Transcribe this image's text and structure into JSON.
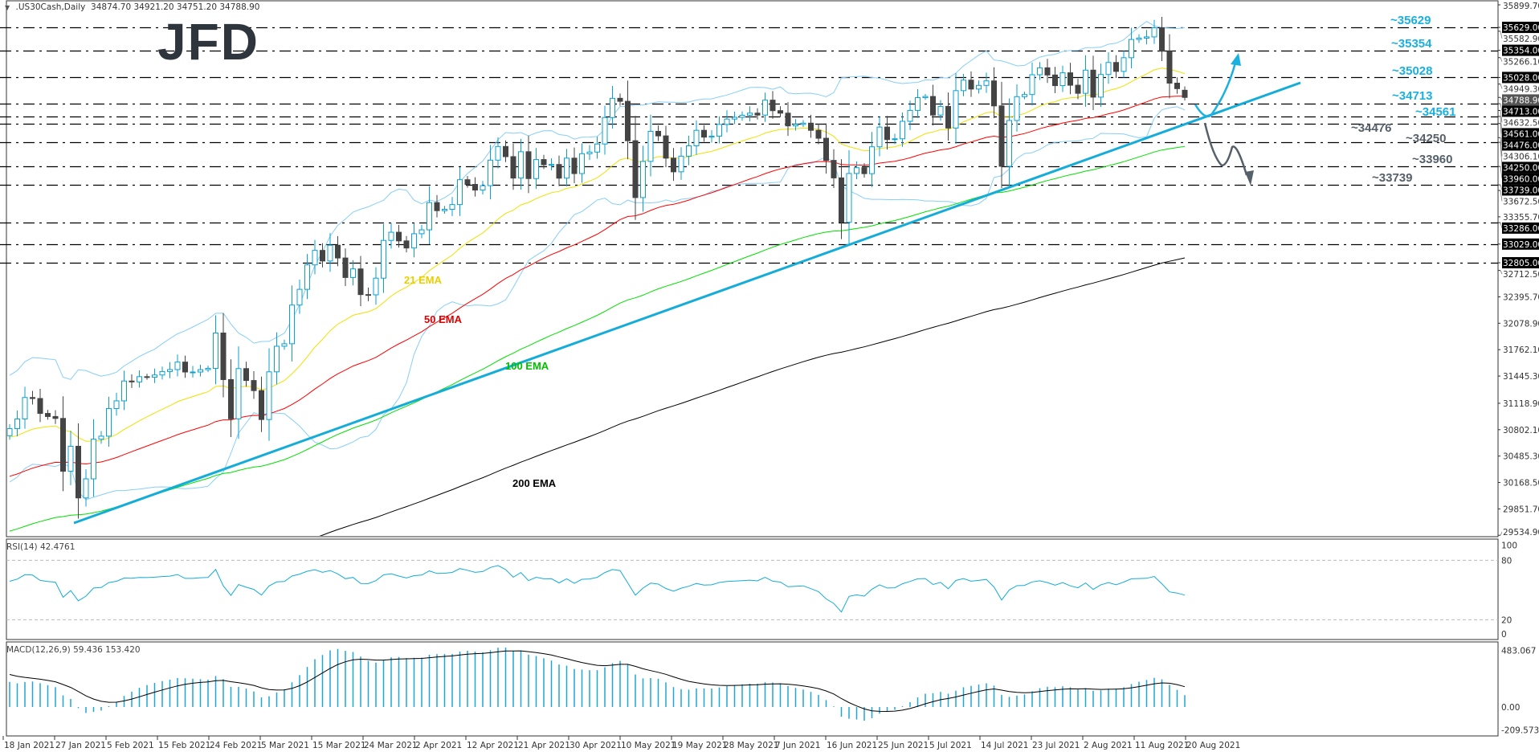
{
  "header": {
    "symbol": ".US30Cash,Daily",
    "ohlc": "34874.70 34921.20 34751.20 34788.90"
  },
  "logo": "JFD",
  "colors": {
    "bull_outline": "#0aa0d0",
    "bear_body": "#444444",
    "ema21": "#f0e000",
    "ema50": "#ff0000",
    "ema100": "#00e000",
    "ema200": "#000000",
    "bollinger": "#87cefa",
    "trendline": "#14acd8",
    "level_up": "#1ab0e0",
    "level_down": "#56606a",
    "rsi": "#14acd8",
    "macd_hist": "#1ea7d4",
    "macd_signal": "#000000"
  },
  "price_axis": {
    "ticks": [
      "35899.70",
      "35582.90",
      "35266.10",
      "34949.30",
      "34632.50",
      "34306.10",
      "33672.50",
      "33355.70",
      "32712.50",
      "32395.70",
      "32078.90",
      "31762.10",
      "31445.30",
      "31118.90",
      "30802.10",
      "30485.30",
      "30168.50",
      "29851.70",
      "29534.90"
    ],
    "current_price": "34788.90",
    "range": [
      29534.9,
      35899.7
    ]
  },
  "levels": [
    {
      "value": 35629,
      "box": "35629.00",
      "label": "~35629",
      "tone": "up"
    },
    {
      "value": 35354,
      "box": "35354.00",
      "label": "~35354",
      "tone": "up"
    },
    {
      "value": 35028,
      "box": "35028.00",
      "label": "~35028",
      "tone": "up"
    },
    {
      "value": 34713,
      "box": "34713.00",
      "label": "~34713",
      "tone": "up"
    },
    {
      "value": 34561,
      "box": "34561.00",
      "label": "~34561",
      "tone": "up"
    },
    {
      "value": 34476,
      "box": "34476.00",
      "label": "~34476",
      "tone": "down"
    },
    {
      "value": 34250,
      "box": "34250.00",
      "label": "~34250",
      "tone": "down"
    },
    {
      "value": 33960,
      "box": "33960.00",
      "label": "~33960",
      "tone": "down"
    },
    {
      "value": 33739,
      "box": "33739.00",
      "label": "~33739",
      "tone": "down"
    },
    {
      "value": 33286,
      "box": "33286.00",
      "label": "",
      "tone": "none"
    },
    {
      "value": 33029,
      "box": "33029.00",
      "label": "",
      "tone": "none"
    },
    {
      "value": 32805,
      "box": "32805.00",
      "label": "",
      "tone": "none"
    }
  ],
  "ema_labels": {
    "ema21": "21 EMA",
    "ema50": "50 EMA",
    "ema100": "100 EMA",
    "ema200": "200 EMA"
  },
  "rsi": {
    "title": "RSI(14) 42.4761",
    "ticks": [
      "100",
      "80",
      "20",
      "0"
    ]
  },
  "macd": {
    "title": "MACD(12,26,9) 59.436 153.420",
    "ticks": [
      "483.067",
      "0.00",
      "-209.573"
    ]
  },
  "date_axis": [
    "18 Jan 2021",
    "27 Jan 2021",
    "5 Feb 2021",
    "15 Feb 2021",
    "24 Feb 2021",
    "5 Mar 2021",
    "15 Mar 2021",
    "24 Mar 2021",
    "2 Apr 2021",
    "12 Apr 2021",
    "21 Apr 2021",
    "30 Apr 2021",
    "10 May 2021",
    "19 May 2021",
    "28 May 2021",
    "7 Jun 2021",
    "16 Jun 2021",
    "25 Jun 2021",
    "5 Jul 2021",
    "14 Jul 2021",
    "23 Jul 2021",
    "2 Aug 2021",
    "11 Aug 2021",
    "20 Aug 2021"
  ],
  "chart_data": {
    "type": "candlestick",
    "title": ".US30Cash,Daily",
    "ylim": [
      29534.9,
      35899.7
    ],
    "closes": [
      30814,
      30930,
      31188,
      31176,
      30997,
      30960,
      30937,
      30303,
      30603,
      29983,
      30212,
      30688,
      30724,
      31056,
      31148,
      31386,
      31375,
      31438,
      31431,
      31458,
      31500,
      31523,
      31613,
      31494,
      31494,
      31522,
      31538,
      31962,
      31403,
      30932,
      31535,
      31392,
      31271,
      30924,
      31496,
      31803,
      31833,
      32297,
      32486,
      32779,
      32953,
      32826,
      33015,
      32862,
      32628,
      32731,
      32423,
      32420,
      32620,
      33073,
      33171,
      33067,
      32982,
      33153,
      33200,
      33527,
      33430,
      33446,
      33503,
      33801,
      33745,
      33677,
      33730,
      34036,
      34200,
      34078,
      33821,
      34137,
      33815,
      34043,
      33981,
      33984,
      33820,
      34060,
      33875,
      34113,
      34133,
      34230,
      34548,
      34778,
      34742,
      34269,
      33587,
      34021,
      34382,
      34327,
      34060,
      33896,
      34084,
      34208,
      34394,
      34312,
      34323,
      34465,
      34529,
      34550,
      34575,
      34600,
      34577,
      34756,
      34630,
      34600,
      34447,
      34466,
      34480,
      34394,
      34299,
      34033,
      33823,
      33290,
      33876,
      33945,
      33874,
      34196,
      34433,
      34283,
      34292,
      34502,
      34633,
      34786,
      34800,
      34577,
      34681,
      34421,
      34870,
      34996,
      34889,
      34933,
      34987,
      34687,
      33962,
      34512,
      34798,
      34823,
      35061,
      35144,
      35058,
      34930,
      35084,
      34935,
      34838,
      35116,
      34792,
      35064,
      35208,
      35101,
      35265,
      35484,
      35500,
      35515,
      35625,
      35343,
      34960,
      34894,
      34789
    ],
    "last_bar": {
      "open": 34874.7,
      "high": 34921.2,
      "low": 34751.2,
      "close": 34788.9
    },
    "indicators": [
      "EMA 21",
      "EMA 50",
      "EMA 100",
      "EMA 200",
      "Bollinger Bands",
      "RSI(14)",
      "MACD(12,26,9)"
    ],
    "rsi_levels": [
      80,
      20
    ],
    "macd_range": [
      -209.573,
      483.067
    ]
  }
}
